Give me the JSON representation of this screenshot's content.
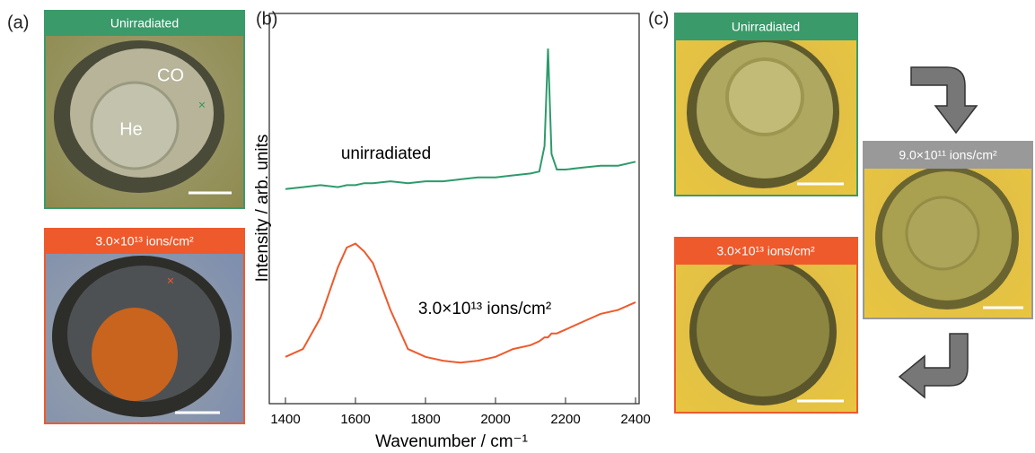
{
  "panel_a": {
    "label": "(a)",
    "images": [
      {
        "title": "Unirradiated",
        "annotations": [
          "CO",
          "He"
        ]
      },
      {
        "title": "3.0×10¹³ ions/cm²"
      }
    ]
  },
  "chart_data": {
    "type": "line",
    "panel_label": "(b)",
    "xlabel": "Wavenumber / cm⁻¹",
    "ylabel": "Intensity / arb. units",
    "x": [
      1400,
      1450,
      1500,
      1550,
      1575,
      1600,
      1625,
      1650,
      1700,
      1750,
      1800,
      1850,
      1900,
      1950,
      2000,
      2050,
      2100,
      2125,
      2140,
      2150,
      2160,
      2175,
      2200,
      2250,
      2300,
      2350,
      2400
    ],
    "series": [
      {
        "name": "unirradiated",
        "color": "#2e9a6b",
        "values": [
          55,
          55.5,
          56,
          55.5,
          56,
          56,
          56.5,
          56.5,
          57,
          56.5,
          57,
          57,
          57.5,
          58,
          58,
          58.5,
          59,
          59.5,
          66,
          91,
          64,
          60,
          60,
          60.5,
          61,
          61,
          62
        ]
      },
      {
        "name": "3.0×10¹³ ions/cm²",
        "color": "#ee5a2c",
        "values": [
          12,
          14,
          22,
          35,
          40,
          41,
          39,
          36,
          24,
          14,
          12,
          11,
          10.5,
          11,
          12,
          14,
          15,
          16,
          17,
          17,
          18,
          18,
          19,
          21,
          23,
          24,
          26
        ]
      }
    ],
    "xlim": [
      1400,
      2400
    ],
    "xticks": [
      1400,
      1600,
      1800,
      2000,
      2200,
      2400
    ],
    "ylim": [
      0,
      100
    ]
  },
  "panel_c": {
    "label": "(c)",
    "images": [
      {
        "title": "Unirradiated"
      },
      {
        "title": "9.0×10¹¹ ions/cm²"
      },
      {
        "title": "3.0×10¹³ ions/cm²"
      }
    ]
  }
}
